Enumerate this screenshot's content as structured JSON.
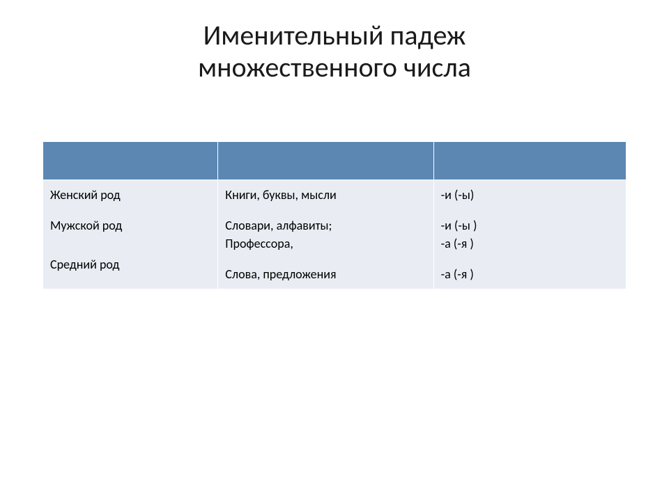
{
  "title_line1": "Именительный падеж",
  "title_line2": "множественного числа",
  "colors": {
    "header_bg": "#5b87b2",
    "body_bg": "#e9edf3",
    "border": "#ffffff",
    "text": "#000000",
    "page_bg": "#ffffff"
  },
  "table": {
    "columns": [
      "",
      "",
      ""
    ],
    "rows": [
      {
        "gender": "Женский род",
        "examples": "Книги, буквы, мысли",
        "endings": " -и (-ы)"
      },
      {
        "gender": "Мужской род",
        "examples": "Словари, алфавиты;\nПрофессора,",
        "endings": "-и (-ы )\n-а (-я )"
      },
      {
        "gender": "Средний род",
        "examples": "Слова, предложения",
        "endings": "-а (-я )"
      }
    ]
  }
}
